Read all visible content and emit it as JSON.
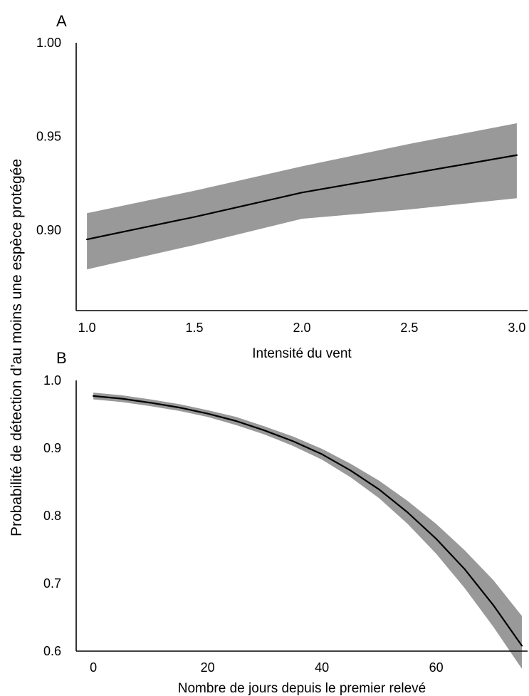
{
  "figure": {
    "shared_ylabel": "Probabilité de détection d’au moins une espèce protégée"
  },
  "chart_data": [
    {
      "panel": "A",
      "type": "line",
      "xlabel": "Intensité du vent",
      "ylabel": "Probabilité de détection d’au moins une espèce protégée",
      "xlim": [
        0.95,
        3.05
      ],
      "ylim": [
        0.857,
        1.0
      ],
      "x_ticks": [
        "1.0",
        "1.5",
        "2.0",
        "2.5",
        "3.0"
      ],
      "y_ticks": [
        "0.90",
        "0.95",
        "1.00"
      ],
      "grid": false,
      "series": [
        {
          "x": [
            1.0,
            1.5,
            2.0,
            2.5,
            3.0
          ],
          "y": [
            0.895,
            0.907,
            0.92,
            0.93,
            0.94
          ],
          "lower": [
            0.879,
            0.892,
            0.906,
            0.911,
            0.917
          ],
          "upper": [
            0.909,
            0.921,
            0.934,
            0.946,
            0.957
          ]
        }
      ],
      "colors": {
        "line": "#000000",
        "band": "#999999"
      }
    },
    {
      "panel": "B",
      "type": "line",
      "xlabel": "Nombre de jours depuis le premier relevé",
      "ylabel": "Probabilité de détection d’au moins une espèce protégée",
      "xlim": [
        -3,
        76
      ],
      "ylim": [
        0.6,
        1.0
      ],
      "x_ticks": [
        "0",
        "20",
        "40",
        "60"
      ],
      "y_ticks": [
        "0.6",
        "0.7",
        "0.8",
        "0.9",
        "1.0"
      ],
      "grid": false,
      "series": [
        {
          "x": [
            0,
            5,
            10,
            15,
            20,
            25,
            30,
            35,
            40,
            45,
            50,
            55,
            60,
            65,
            70,
            75
          ],
          "y": [
            0.977,
            0.973,
            0.967,
            0.96,
            0.951,
            0.94,
            0.926,
            0.91,
            0.891,
            0.867,
            0.839,
            0.805,
            0.766,
            0.721,
            0.668,
            0.608
          ],
          "lower": [
            0.972,
            0.968,
            0.962,
            0.955,
            0.946,
            0.934,
            0.92,
            0.903,
            0.883,
            0.857,
            0.826,
            0.788,
            0.744,
            0.693,
            0.636,
            0.574
          ],
          "upper": [
            0.982,
            0.978,
            0.972,
            0.965,
            0.956,
            0.946,
            0.932,
            0.917,
            0.899,
            0.877,
            0.852,
            0.822,
            0.788,
            0.749,
            0.705,
            0.652
          ]
        }
      ],
      "colors": {
        "line": "#000000",
        "band": "#999999"
      }
    }
  ]
}
